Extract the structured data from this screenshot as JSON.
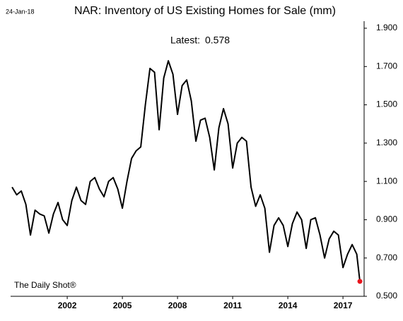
{
  "chart_data": {
    "type": "line",
    "title": "NAR: Inventory of US Existing Homes for Sale (mm)",
    "date": "24-Jan-18",
    "latest_label": "Latest:",
    "latest_value": 0.578,
    "source": "The Daily Shot®",
    "x": [
      1999.0,
      1999.25,
      1999.5,
      1999.75,
      2000.0,
      2000.25,
      2000.5,
      2000.75,
      2001.0,
      2001.25,
      2001.5,
      2001.75,
      2002.0,
      2002.25,
      2002.5,
      2002.75,
      2003.0,
      2003.25,
      2003.5,
      2003.75,
      2004.0,
      2004.25,
      2004.5,
      2004.75,
      2005.0,
      2005.25,
      2005.5,
      2005.75,
      2006.0,
      2006.25,
      2006.5,
      2006.75,
      2007.0,
      2007.25,
      2007.5,
      2007.75,
      2008.0,
      2008.25,
      2008.5,
      2008.75,
      2009.0,
      2009.25,
      2009.5,
      2009.75,
      2010.0,
      2010.25,
      2010.5,
      2010.75,
      2011.0,
      2011.25,
      2011.5,
      2011.75,
      2012.0,
      2012.25,
      2012.5,
      2012.75,
      2013.0,
      2013.25,
      2013.5,
      2013.75,
      2014.0,
      2014.25,
      2014.5,
      2014.75,
      2015.0,
      2015.25,
      2015.5,
      2015.75,
      2016.0,
      2016.25,
      2016.5,
      2016.75,
      2017.0,
      2017.25,
      2017.5,
      2017.75,
      2017.92
    ],
    "series": [
      {
        "name": "Inventory",
        "color": "#000000",
        "values": [
          1.07,
          1.03,
          1.05,
          0.98,
          0.82,
          0.95,
          0.93,
          0.92,
          0.83,
          0.93,
          0.99,
          0.9,
          0.87,
          1.0,
          1.07,
          1.0,
          0.98,
          1.1,
          1.12,
          1.06,
          1.02,
          1.1,
          1.12,
          1.06,
          0.96,
          1.1,
          1.22,
          1.26,
          1.28,
          1.5,
          1.69,
          1.67,
          1.37,
          1.64,
          1.73,
          1.66,
          1.45,
          1.6,
          1.63,
          1.52,
          1.31,
          1.42,
          1.43,
          1.33,
          1.16,
          1.38,
          1.48,
          1.4,
          1.17,
          1.3,
          1.33,
          1.31,
          1.07,
          0.97,
          1.03,
          0.96,
          0.73,
          0.87,
          0.91,
          0.87,
          0.76,
          0.88,
          0.94,
          0.9,
          0.75,
          0.9,
          0.91,
          0.82,
          0.7,
          0.8,
          0.84,
          0.82,
          0.65,
          0.72,
          0.77,
          0.72,
          0.578
        ]
      }
    ],
    "last_point_color": "#e8141c",
    "xlim": [
      1998.92,
      2018.15
    ],
    "xticks": [
      2002,
      2005,
      2008,
      2011,
      2014,
      2017
    ],
    "ylim": [
      0.5,
      1.9
    ],
    "yticks": [
      {
        "value": 0.5,
        "label": "0.500"
      },
      {
        "value": 0.7,
        "label": "0.700"
      },
      {
        "value": 0.9,
        "label": "0.900"
      },
      {
        "value": 1.1,
        "label": "1.100"
      },
      {
        "value": 1.3,
        "label": "1.300"
      },
      {
        "value": 1.5,
        "label": "1.500"
      },
      {
        "value": 1.7,
        "label": "1.700"
      },
      {
        "value": 1.9,
        "label": "1.900"
      }
    ]
  }
}
